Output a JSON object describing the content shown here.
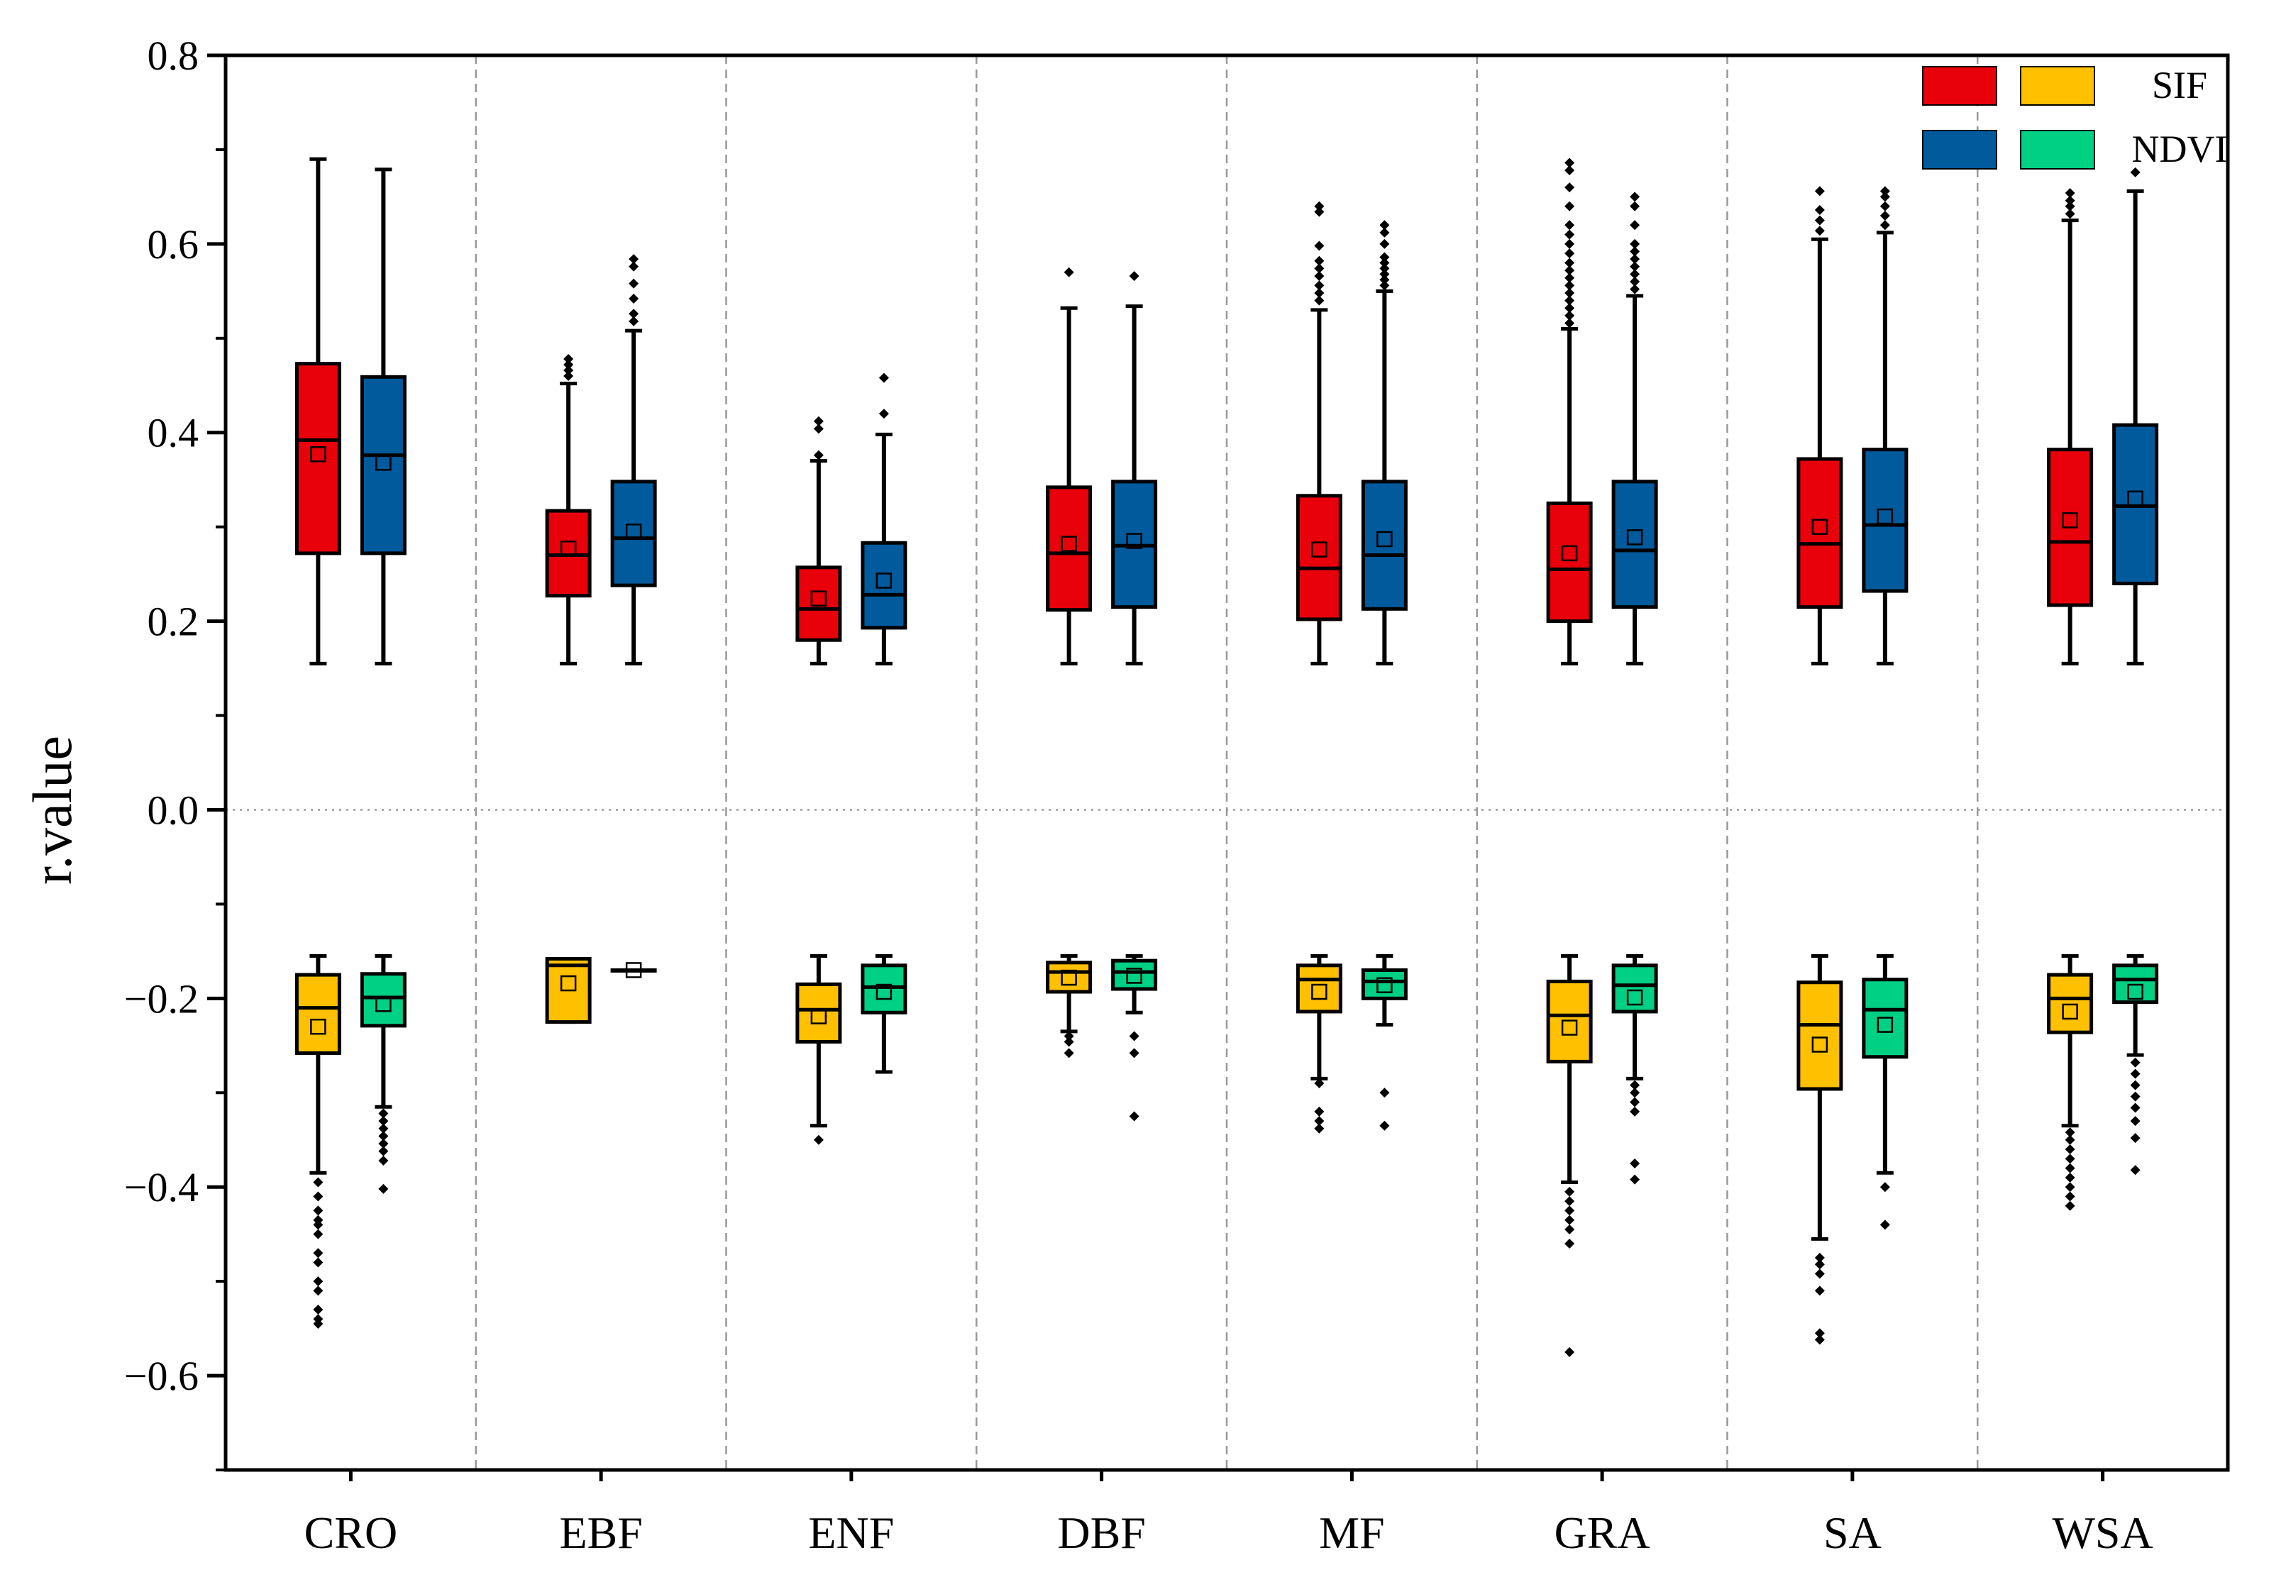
{
  "chart_data": {
    "type": "box",
    "ylabel": "r.value",
    "xlabel": "",
    "ylim": [
      -0.7,
      0.8
    ],
    "yticks": [
      0.8,
      0.6,
      0.4,
      0.2,
      0.0,
      -0.2,
      -0.4,
      -0.6
    ],
    "ytick_labels": [
      "0.8",
      "0.6",
      "0.4",
      "0.2",
      "0.0",
      "−0.2",
      "−0.4",
      "−0.6"
    ],
    "minor_ticks": true,
    "zero_line": true,
    "category_separators": true,
    "categories": [
      "CRO",
      "EBF",
      "ENF",
      "DBF",
      "MF",
      "GRA",
      "SA",
      "WSA"
    ],
    "legend": {
      "position": "top-right",
      "entries": [
        {
          "label": "SIF",
          "colors": [
            "#e8000b",
            "#ffc000"
          ]
        },
        {
          "label": "NDVI",
          "colors": [
            "#005a9c",
            "#00d084"
          ]
        }
      ]
    },
    "series": [
      {
        "name": "SIF positive",
        "color": "#e8000b",
        "stats": [
          {
            "category": "CRO",
            "wlo": 0.155,
            "q1": 0.272,
            "median": 0.392,
            "q3": 0.473,
            "whi": 0.69,
            "mean": 0.377,
            "outliers": []
          },
          {
            "category": "EBF",
            "wlo": 0.155,
            "q1": 0.227,
            "median": 0.27,
            "q3": 0.317,
            "whi": 0.452,
            "mean": 0.277,
            "outliers": [
              0.46,
              0.466,
              0.472,
              0.478
            ]
          },
          {
            "category": "ENF",
            "wlo": 0.155,
            "q1": 0.18,
            "median": 0.213,
            "q3": 0.257,
            "whi": 0.37,
            "mean": 0.224,
            "outliers": [
              0.376,
              0.404,
              0.412
            ]
          },
          {
            "category": "DBF",
            "wlo": 0.155,
            "q1": 0.212,
            "median": 0.272,
            "q3": 0.342,
            "whi": 0.532,
            "mean": 0.282,
            "outliers": [
              0.57
            ]
          },
          {
            "category": "MF",
            "wlo": 0.155,
            "q1": 0.202,
            "median": 0.256,
            "q3": 0.333,
            "whi": 0.53,
            "mean": 0.276,
            "outliers": [
              0.54,
              0.548,
              0.556,
              0.566,
              0.574,
              0.582,
              0.598,
              0.634,
              0.64
            ]
          },
          {
            "category": "GRA",
            "wlo": 0.155,
            "q1": 0.2,
            "median": 0.255,
            "q3": 0.325,
            "whi": 0.51,
            "mean": 0.272,
            "outliers": [
              0.516,
              0.524,
              0.532,
              0.54,
              0.548,
              0.556,
              0.564,
              0.572,
              0.58,
              0.59,
              0.6,
              0.61,
              0.62,
              0.64,
              0.66,
              0.678,
              0.686
            ]
          },
          {
            "category": "SA",
            "wlo": 0.155,
            "q1": 0.215,
            "median": 0.282,
            "q3": 0.372,
            "whi": 0.605,
            "mean": 0.3,
            "outliers": [
              0.614,
              0.625,
              0.636,
              0.656
            ]
          },
          {
            "category": "WSA",
            "wlo": 0.155,
            "q1": 0.217,
            "median": 0.284,
            "q3": 0.382,
            "whi": 0.625,
            "mean": 0.307,
            "outliers": [
              0.632,
              0.64,
              0.646,
              0.654
            ]
          }
        ]
      },
      {
        "name": "NDVI positive",
        "color": "#005a9c",
        "stats": [
          {
            "category": "CRO",
            "wlo": 0.155,
            "q1": 0.272,
            "median": 0.376,
            "q3": 0.459,
            "whi": 0.679,
            "mean": 0.368,
            "outliers": []
          },
          {
            "category": "EBF",
            "wlo": 0.155,
            "q1": 0.238,
            "median": 0.288,
            "q3": 0.348,
            "whi": 0.508,
            "mean": 0.295,
            "outliers": [
              0.518,
              0.526,
              0.542,
              0.558,
              0.576,
              0.584
            ]
          },
          {
            "category": "ENF",
            "wlo": 0.155,
            "q1": 0.193,
            "median": 0.228,
            "q3": 0.283,
            "whi": 0.398,
            "mean": 0.243,
            "outliers": [
              0.42,
              0.458
            ]
          },
          {
            "category": "DBF",
            "wlo": 0.155,
            "q1": 0.215,
            "median": 0.28,
            "q3": 0.348,
            "whi": 0.534,
            "mean": 0.285,
            "outliers": [
              0.566
            ]
          },
          {
            "category": "MF",
            "wlo": 0.155,
            "q1": 0.213,
            "median": 0.27,
            "q3": 0.348,
            "whi": 0.55,
            "mean": 0.287,
            "outliers": [
              0.556,
              0.562,
              0.568,
              0.574,
              0.58,
              0.586,
              0.6,
              0.612,
              0.62
            ]
          },
          {
            "category": "GRA",
            "wlo": 0.155,
            "q1": 0.215,
            "median": 0.275,
            "q3": 0.348,
            "whi": 0.545,
            "mean": 0.289,
            "outliers": [
              0.552,
              0.56,
              0.568,
              0.576,
              0.584,
              0.592,
              0.6,
              0.62,
              0.64,
              0.65
            ]
          },
          {
            "category": "SA",
            "wlo": 0.155,
            "q1": 0.232,
            "median": 0.302,
            "q3": 0.382,
            "whi": 0.612,
            "mean": 0.311,
            "outliers": [
              0.62,
              0.63,
              0.64,
              0.65,
              0.656
            ]
          },
          {
            "category": "WSA",
            "wlo": 0.155,
            "q1": 0.24,
            "median": 0.322,
            "q3": 0.408,
            "whi": 0.656,
            "mean": 0.33,
            "outliers": [
              0.676
            ]
          }
        ]
      },
      {
        "name": "SIF negative",
        "color": "#ffc000",
        "stats": [
          {
            "category": "CRO",
            "wlo": -0.385,
            "q1": -0.258,
            "median": -0.21,
            "q3": -0.175,
            "whi": -0.155,
            "mean": -0.23,
            "outliers": [
              -0.395,
              -0.41,
              -0.425,
              -0.435,
              -0.44,
              -0.45,
              -0.47,
              -0.48,
              -0.5,
              -0.51,
              -0.53,
              -0.54,
              -0.545
            ]
          },
          {
            "category": "EBF",
            "wlo": -0.225,
            "q1": -0.225,
            "median": -0.165,
            "q3": -0.158,
            "whi": -0.158,
            "mean": -0.184,
            "outliers": []
          },
          {
            "category": "ENF",
            "wlo": -0.335,
            "q1": -0.246,
            "median": -0.212,
            "q3": -0.185,
            "whi": -0.155,
            "mean": -0.219,
            "outliers": [
              -0.35
            ]
          },
          {
            "category": "DBF",
            "wlo": -0.235,
            "q1": -0.193,
            "median": -0.172,
            "q3": -0.162,
            "whi": -0.155,
            "mean": -0.178,
            "outliers": [
              -0.24,
              -0.246,
              -0.258
            ]
          },
          {
            "category": "MF",
            "wlo": -0.285,
            "q1": -0.214,
            "median": -0.18,
            "q3": -0.165,
            "whi": -0.155,
            "mean": -0.193,
            "outliers": [
              -0.29,
              -0.32,
              -0.33,
              -0.338
            ]
          },
          {
            "category": "GRA",
            "wlo": -0.395,
            "q1": -0.267,
            "median": -0.218,
            "q3": -0.182,
            "whi": -0.155,
            "mean": -0.231,
            "outliers": [
              -0.405,
              -0.415,
              -0.425,
              -0.435,
              -0.445,
              -0.46,
              -0.575
            ]
          },
          {
            "category": "SA",
            "wlo": -0.455,
            "q1": -0.296,
            "median": -0.228,
            "q3": -0.183,
            "whi": -0.155,
            "mean": -0.249,
            "outliers": [
              -0.475,
              -0.482,
              -0.492,
              -0.51,
              -0.555,
              -0.562
            ]
          },
          {
            "category": "WSA",
            "wlo": -0.335,
            "q1": -0.236,
            "median": -0.2,
            "q3": -0.175,
            "whi": -0.155,
            "mean": -0.214,
            "outliers": [
              -0.342,
              -0.35,
              -0.36,
              -0.37,
              -0.38,
              -0.39,
              -0.4,
              -0.41,
              -0.42
            ]
          }
        ]
      },
      {
        "name": "NDVI negative",
        "color": "#00d084",
        "stats": [
          {
            "category": "CRO",
            "wlo": -0.315,
            "q1": -0.229,
            "median": -0.199,
            "q3": -0.174,
            "whi": -0.155,
            "mean": -0.206,
            "outliers": [
              -0.322,
              -0.33,
              -0.338,
              -0.346,
              -0.354,
              -0.362,
              -0.372,
              -0.402
            ]
          },
          {
            "category": "EBF",
            "wlo": -0.17,
            "q1": -0.17,
            "median": -0.17,
            "q3": -0.17,
            "whi": -0.17,
            "mean": -0.17,
            "outliers": []
          },
          {
            "category": "ENF",
            "wlo": -0.278,
            "q1": -0.215,
            "median": -0.188,
            "q3": -0.165,
            "whi": -0.155,
            "mean": -0.193,
            "outliers": []
          },
          {
            "category": "DBF",
            "wlo": -0.215,
            "q1": -0.19,
            "median": -0.172,
            "q3": -0.16,
            "whi": -0.155,
            "mean": -0.176,
            "outliers": [
              -0.24,
              -0.258,
              -0.325
            ]
          },
          {
            "category": "MF",
            "wlo": -0.228,
            "q1": -0.2,
            "median": -0.182,
            "q3": -0.17,
            "whi": -0.155,
            "mean": -0.186,
            "outliers": [
              -0.3,
              -0.335
            ]
          },
          {
            "category": "GRA",
            "wlo": -0.285,
            "q1": -0.214,
            "median": -0.186,
            "q3": -0.165,
            "whi": -0.155,
            "mean": -0.199,
            "outliers": [
              -0.292,
              -0.3,
              -0.31,
              -0.32,
              -0.375,
              -0.392
            ]
          },
          {
            "category": "SA",
            "wlo": -0.385,
            "q1": -0.262,
            "median": -0.212,
            "q3": -0.18,
            "whi": -0.155,
            "mean": -0.228,
            "outliers": [
              -0.4,
              -0.44
            ]
          },
          {
            "category": "WSA",
            "wlo": -0.26,
            "q1": -0.204,
            "median": -0.18,
            "q3": -0.165,
            "whi": -0.155,
            "mean": -0.193,
            "outliers": [
              -0.268,
              -0.28,
              -0.292,
              -0.304,
              -0.316,
              -0.33,
              -0.348,
              -0.382
            ]
          }
        ]
      }
    ]
  }
}
